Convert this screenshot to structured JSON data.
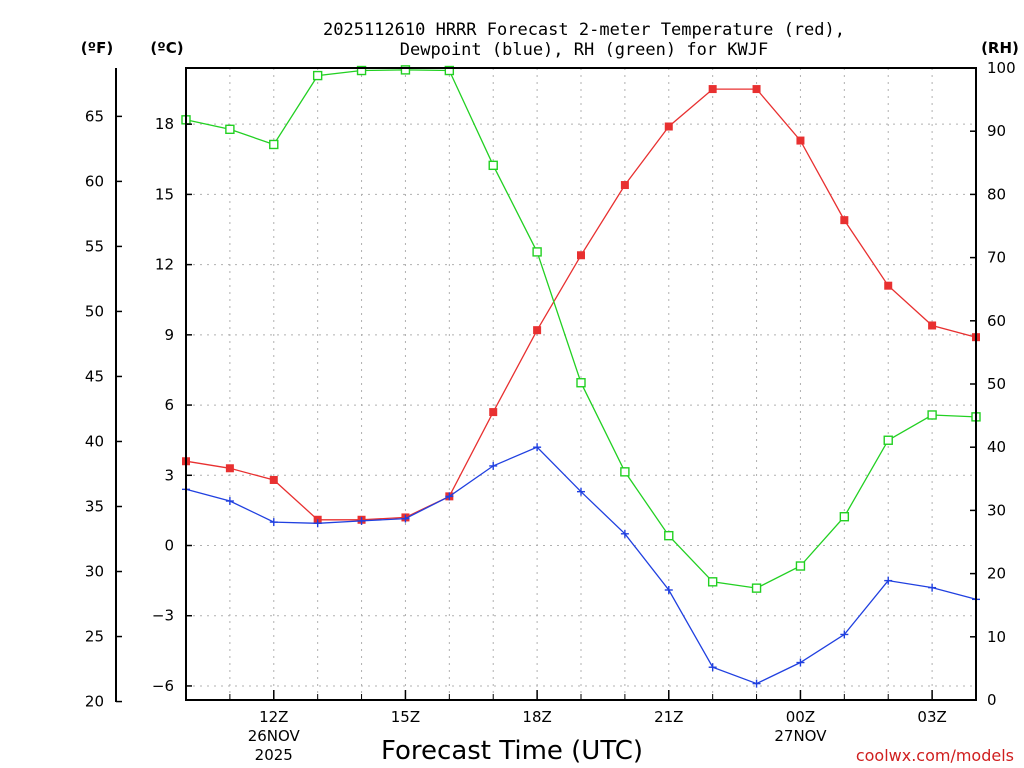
{
  "chart_data": {
    "type": "line",
    "title_line1": "2025112610 HRRR Forecast 2-meter Temperature (red),",
    "title_line2": "Dewpoint (blue), RH (green) for KWJF",
    "xlabel": "Forecast Time (UTC)",
    "credit": "coolwx.com/models",
    "axes": {
      "f_label": "(ºF)",
      "c_label": "(ºC)",
      "rh_label": "(RH)",
      "f_ticks": [
        "20",
        "25",
        "30",
        "35",
        "40",
        "45",
        "50",
        "55",
        "60",
        "65"
      ],
      "c_ticks": [
        "-6",
        "-3",
        "0",
        "3",
        "6",
        "9",
        "12",
        "15",
        "18"
      ],
      "rh_ticks": [
        "0",
        "10",
        "20",
        "30",
        "40",
        "50",
        "60",
        "70",
        "80",
        "90",
        "100"
      ],
      "c_range": [
        -6.6,
        20.4
      ],
      "rh_range": [
        0,
        100
      ],
      "x_range": [
        10,
        28
      ]
    },
    "x_ticks": [
      {
        "hour": 12,
        "label": "12Z",
        "sub1": "26NOV",
        "sub2": "2025"
      },
      {
        "hour": 15,
        "label": "15Z",
        "sub1": "",
        "sub2": ""
      },
      {
        "hour": 18,
        "label": "18Z",
        "sub1": "",
        "sub2": ""
      },
      {
        "hour": 21,
        "label": "21Z",
        "sub1": "",
        "sub2": ""
      },
      {
        "hour": 24,
        "label": "00Z",
        "sub1": "27NOV",
        "sub2": ""
      },
      {
        "hour": 27,
        "label": "03Z",
        "sub1": "",
        "sub2": ""
      }
    ],
    "hours": [
      10,
      11,
      12,
      13,
      14,
      15,
      16,
      17,
      18,
      19,
      20,
      21,
      22,
      23,
      24,
      25,
      26,
      27,
      28
    ],
    "series": [
      {
        "name": "Temperature",
        "axis": "c",
        "color": "#e83030",
        "marker": "filled-square",
        "values": [
          3.6,
          3.3,
          2.8,
          1.1,
          1.1,
          1.2,
          2.1,
          5.7,
          9.2,
          12.4,
          15.4,
          17.9,
          19.5,
          19.5,
          17.3,
          13.9,
          11.1,
          9.4,
          8.9
        ]
      },
      {
        "name": "Dewpoint",
        "axis": "c",
        "color": "#2040e0",
        "marker": "plus",
        "values": [
          2.4,
          1.9,
          1.0,
          0.95,
          1.05,
          1.15,
          2.1,
          3.4,
          4.2,
          2.3,
          0.5,
          -1.9,
          -5.2,
          -5.9,
          -5.0,
          -3.8,
          -1.5,
          -1.8,
          -2.3
        ]
      },
      {
        "name": "RH",
        "axis": "rh",
        "color": "#22d022",
        "marker": "open-square",
        "values": [
          91.8,
          90.3,
          87.9,
          98.8,
          99.6,
          99.7,
          99.6,
          84.6,
          70.9,
          50.2,
          36.1,
          26.0,
          18.7,
          17.7,
          21.2,
          29.0,
          41.1,
          45.1,
          44.8
        ]
      }
    ]
  }
}
